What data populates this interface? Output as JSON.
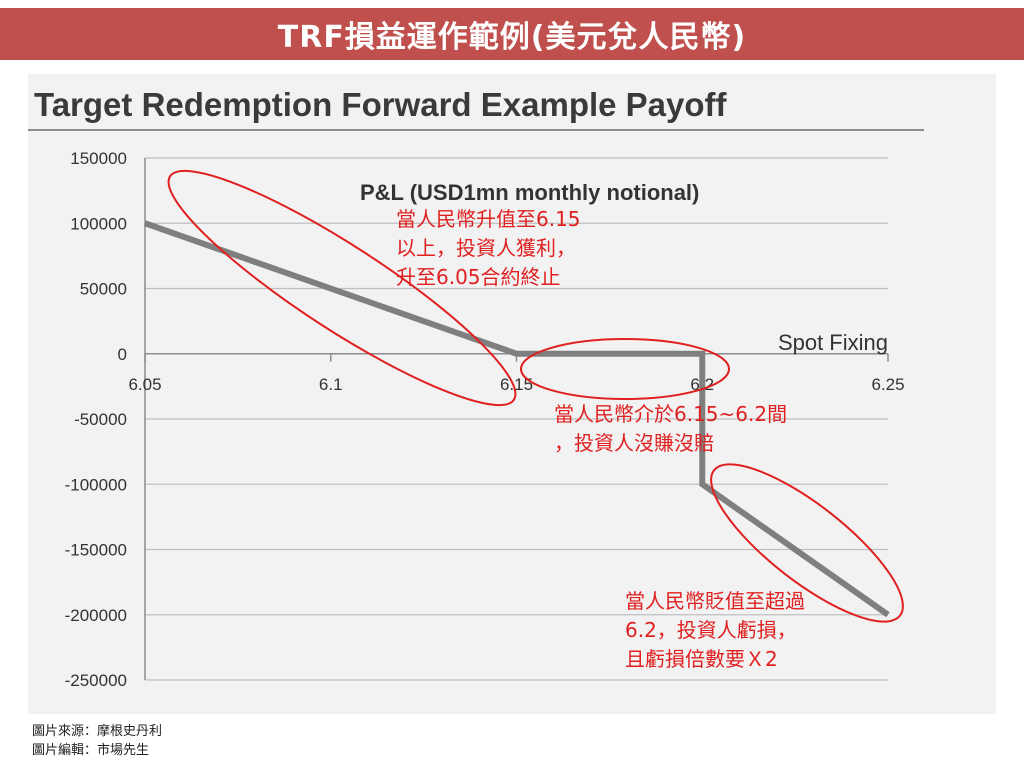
{
  "banner": {
    "title": "TRF損益運作範例(美元兌人民幣)"
  },
  "chart_data": {
    "type": "line",
    "title": "Target Redemption Forward Example Payoff",
    "subtitle": "P&L (USD1mn monthly notional)",
    "xlabel": "Spot Fixing",
    "ylabel": "",
    "xlim": [
      6.05,
      6.25
    ],
    "ylim": [
      -250000,
      150000
    ],
    "x_ticks": [
      "6.05",
      "6.1",
      "6.15",
      "6.2",
      "6.25"
    ],
    "y_ticks": [
      "150000",
      "100000",
      "50000",
      "0",
      "-50000",
      "-100000",
      "-150000",
      "-200000",
      "-250000"
    ],
    "grid": "horizontal",
    "series": [
      {
        "color": "#7f7f7f",
        "x": [
          6.05,
          6.15,
          6.2,
          6.2,
          6.25
        ],
        "y": [
          100000,
          0,
          0,
          -100000,
          -200000
        ]
      }
    ],
    "annotations": [
      {
        "lines": [
          "當人民幣升值至6.15",
          "以上，投資人獲利，",
          "升至6.05合約終止"
        ]
      },
      {
        "lines": [
          "當人民幣介於6.15~6.2間",
          "，投資人沒賺沒賠"
        ]
      },
      {
        "lines": [
          "當人民幣貶值至超過",
          "6.2，投資人虧損，",
          "且虧損倍數要Ｘ2"
        ]
      }
    ],
    "highlight_color": "#e02020"
  },
  "credits": {
    "source": "圖片來源：摩根史丹利",
    "editor": "圖片編輯：市場先生"
  }
}
